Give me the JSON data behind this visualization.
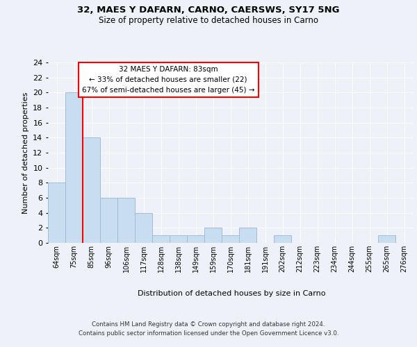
{
  "title1": "32, MAES Y DAFARN, CARNO, CAERSWS, SY17 5NG",
  "title2": "Size of property relative to detached houses in Carno",
  "xlabel": "Distribution of detached houses by size in Carno",
  "ylabel": "Number of detached properties",
  "bin_labels": [
    "64sqm",
    "75sqm",
    "85sqm",
    "96sqm",
    "106sqm",
    "117sqm",
    "128sqm",
    "138sqm",
    "149sqm",
    "159sqm",
    "170sqm",
    "181sqm",
    "191sqm",
    "202sqm",
    "212sqm",
    "223sqm",
    "234sqm",
    "244sqm",
    "255sqm",
    "265sqm",
    "276sqm"
  ],
  "bin_values": [
    8,
    20,
    14,
    6,
    6,
    4,
    1,
    1,
    1,
    2,
    1,
    2,
    0,
    1,
    0,
    0,
    0,
    0,
    0,
    1,
    0
  ],
  "bar_color": "#c9ddf0",
  "bar_edge_color": "#a0bdd8",
  "property_line_bin": 2,
  "ylim": [
    0,
    24
  ],
  "yticks": [
    0,
    2,
    4,
    6,
    8,
    10,
    12,
    14,
    16,
    18,
    20,
    22,
    24
  ],
  "annotation_title": "32 MAES Y DAFARN: 83sqm",
  "annotation_line1": "← 33% of detached houses are smaller (22)",
  "annotation_line2": "67% of semi-detached houses are larger (45) →",
  "footer1": "Contains HM Land Registry data © Crown copyright and database right 2024.",
  "footer2": "Contains public sector information licensed under the Open Government Licence v3.0.",
  "background_color": "#eef2f8",
  "plot_background": "#eef2f8"
}
